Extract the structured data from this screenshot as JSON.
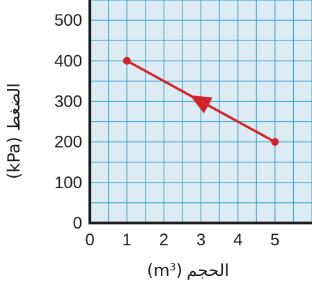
{
  "chart_data": {
    "type": "line",
    "xlabel": "الحجم (m3)",
    "xlabel_parts": {
      "text": "الحجم",
      "unit": "(m",
      "sup": "3",
      "close": ")"
    },
    "ylabel": "الضغط (kPa)",
    "ylabel_parts": {
      "text": "الضغط",
      "unit": "(kPa)"
    },
    "xlim": [
      0,
      6
    ],
    "ylim": [
      0,
      550
    ],
    "x_ticks": [
      0,
      1,
      2,
      3,
      4,
      5
    ],
    "y_ticks": [
      0,
      100,
      200,
      300,
      400,
      500
    ],
    "grid": true,
    "series": [
      {
        "points": [
          {
            "x": 1,
            "y": 400
          },
          {
            "x": 5,
            "y": 200
          }
        ],
        "direction": "from x=5 toward x=1",
        "color": "#d2232a"
      }
    ],
    "colors": {
      "plot_background": "#dcecf2",
      "grid": "#3aa0cf",
      "axis": "#1c1c1c"
    }
  }
}
